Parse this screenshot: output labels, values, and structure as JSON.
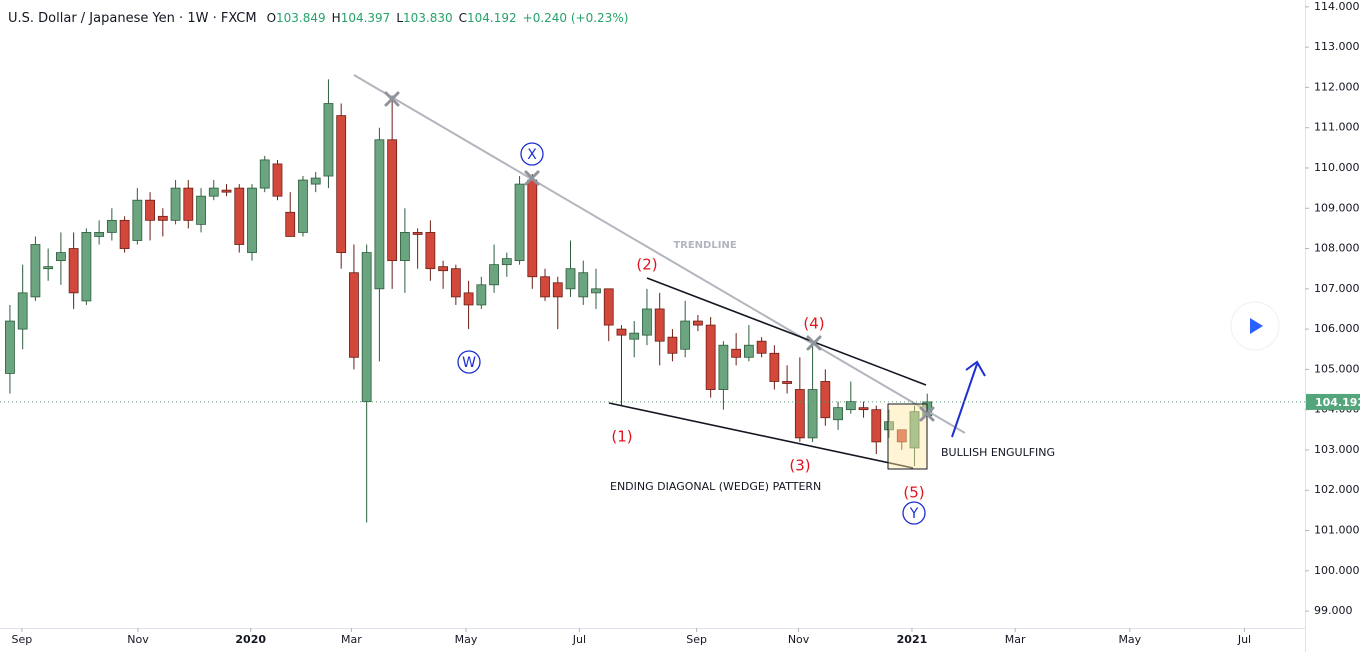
{
  "chart_data": {
    "type": "candlestick",
    "title": "U.S. Dollar / Japanese Yen · 1W · FXCM",
    "header_values": [
      {
        "label": "O",
        "value": "103.849"
      },
      {
        "label": "H",
        "value": "104.397"
      },
      {
        "label": "L",
        "value": "103.830"
      },
      {
        "label": "C",
        "value": "104.192"
      }
    ],
    "change": "+0.240 (+0.23%)",
    "last_price": 104.192,
    "up_color": "#6aa57f",
    "down_color": "#d2493c",
    "open": [
      104.9,
      106.0,
      106.8,
      107.5,
      107.7,
      108.0,
      106.7,
      108.3,
      108.4,
      108.7,
      108.2,
      109.2,
      108.8,
      108.7,
      109.5,
      108.6,
      109.3,
      109.45,
      109.5,
      107.9,
      109.5,
      110.1,
      108.9,
      108.4,
      109.6,
      109.8,
      111.3,
      107.4,
      104.2,
      107.0,
      110.7,
      107.7,
      108.4,
      108.4,
      107.55,
      107.5,
      106.9,
      106.6,
      107.1,
      107.6,
      107.7,
      109.7,
      107.3,
      107.15,
      107.0,
      106.8,
      106.9,
      107.0,
      106.0,
      105.75,
      105.85,
      106.5,
      105.8,
      105.5,
      106.2,
      106.1,
      104.5,
      105.5,
      105.3,
      105.7,
      105.4,
      104.7,
      104.5,
      103.3,
      104.7,
      103.75,
      104.0,
      104.05,
      104.0,
      103.5,
      103.5,
      103.05,
      103.849
    ],
    "high": [
      106.6,
      107.6,
      108.3,
      108.0,
      108.4,
      108.4,
      108.5,
      108.7,
      109.0,
      108.8,
      109.5,
      109.4,
      109.0,
      109.7,
      109.7,
      109.5,
      109.7,
      109.6,
      109.6,
      109.6,
      110.3,
      110.2,
      109.4,
      109.8,
      109.9,
      112.2,
      111.6,
      108.1,
      108.1,
      111.0,
      111.8,
      109.0,
      108.5,
      108.7,
      107.7,
      107.6,
      107.2,
      107.3,
      108.1,
      107.9,
      109.8,
      109.85,
      107.5,
      107.3,
      108.2,
      107.7,
      107.5,
      107.0,
      106.1,
      106.2,
      107.0,
      106.9,
      106.0,
      106.7,
      106.35,
      106.3,
      105.7,
      105.9,
      106.1,
      105.8,
      105.6,
      105.1,
      105.3,
      105.7,
      105.0,
      104.2,
      104.7,
      104.2,
      104.1,
      104.0,
      103.5,
      104.1,
      104.397
    ],
    "low": [
      104.4,
      105.5,
      106.7,
      107.2,
      107.1,
      106.5,
      106.6,
      108.1,
      108.2,
      107.9,
      108.1,
      108.2,
      108.3,
      108.6,
      108.5,
      108.4,
      109.2,
      109.3,
      107.9,
      107.7,
      109.4,
      109.2,
      108.3,
      108.3,
      109.4,
      109.5,
      107.5,
      105.0,
      101.2,
      105.2,
      107.0,
      106.9,
      107.5,
      107.2,
      107.0,
      106.6,
      106.0,
      106.5,
      106.9,
      107.3,
      107.6,
      107.0,
      106.7,
      106.0,
      106.8,
      106.6,
      106.5,
      105.7,
      104.1,
      105.3,
      105.6,
      105.1,
      105.2,
      105.3,
      105.95,
      104.3,
      104.0,
      105.1,
      105.2,
      105.3,
      104.5,
      104.4,
      103.2,
      103.2,
      103.6,
      103.5,
      103.9,
      103.8,
      102.9,
      103.3,
      103.0,
      102.6,
      103.83
    ],
    "close": [
      106.2,
      106.9,
      108.1,
      107.55,
      107.9,
      106.9,
      108.4,
      108.4,
      108.7,
      108.0,
      109.2,
      108.7,
      108.7,
      109.5,
      108.7,
      109.3,
      109.5,
      109.4,
      108.1,
      109.5,
      110.2,
      109.3,
      108.3,
      109.7,
      109.75,
      111.6,
      107.9,
      105.3,
      107.9,
      110.7,
      107.7,
      108.4,
      108.35,
      107.5,
      107.45,
      106.8,
      106.6,
      107.1,
      107.6,
      107.75,
      109.6,
      107.3,
      106.8,
      106.8,
      107.5,
      107.4,
      107.0,
      106.1,
      105.85,
      105.9,
      106.5,
      105.7,
      105.4,
      106.2,
      106.1,
      104.5,
      105.6,
      105.3,
      105.6,
      105.4,
      104.7,
      104.65,
      103.3,
      104.5,
      103.8,
      104.05,
      104.2,
      104.0,
      103.2,
      103.7,
      103.2,
      103.95,
      104.192
    ],
    "xlim": [
      -0.78,
      101.65
    ],
    "xticks": [
      {
        "value": 0.94,
        "label": "Sep"
      },
      {
        "value": 10.05,
        "label": "Nov"
      },
      {
        "value": 18.9,
        "label": "2020"
      },
      {
        "value": 26.8,
        "label": "Mar"
      },
      {
        "value": 35.8,
        "label": "May"
      },
      {
        "value": 44.7,
        "label": "Jul"
      },
      {
        "value": 53.9,
        "label": "Sep"
      },
      {
        "value": 61.9,
        "label": "Nov"
      },
      {
        "value": 70.8,
        "label": "2021"
      },
      {
        "value": 78.9,
        "label": "Mar"
      },
      {
        "value": 87.9,
        "label": "May"
      },
      {
        "value": 96.9,
        "label": "Jul"
      }
    ],
    "ylim": [
      98.58,
      114.17
    ],
    "yticks": [
      {
        "value": 99,
        "label": "99.000"
      },
      {
        "value": 100,
        "label": "100.000"
      },
      {
        "value": 101,
        "label": "101.000"
      },
      {
        "value": 102,
        "label": "102.000"
      },
      {
        "value": 103,
        "label": "103.000"
      },
      {
        "value": 104,
        "label": "104.000"
      },
      {
        "value": 105,
        "label": "105.000"
      },
      {
        "value": 106,
        "label": "106.000"
      },
      {
        "value": 107,
        "label": "107.000"
      },
      {
        "value": 108,
        "label": "108.000"
      },
      {
        "value": 109,
        "label": "109.000"
      },
      {
        "value": 110,
        "label": "110.000"
      },
      {
        "value": 111,
        "label": "111.000"
      },
      {
        "value": 112,
        "label": "112.000"
      },
      {
        "value": 113,
        "label": "113.000"
      },
      {
        "value": 114,
        "label": "114.000"
      }
    ],
    "annotations": {
      "wave_1": "(1)",
      "wave_2": "(2)",
      "wave_3": "(3)",
      "wave_4": "(4)",
      "wave_5": "(5)",
      "wave_w": "W",
      "wave_x": "X",
      "wave_y": "Y",
      "trendline": "TRENDLINE",
      "pattern": "ENDING DIAGONAL (WEDGE) PATTERN",
      "engulfing": "BULLISH ENGULFING"
    }
  }
}
